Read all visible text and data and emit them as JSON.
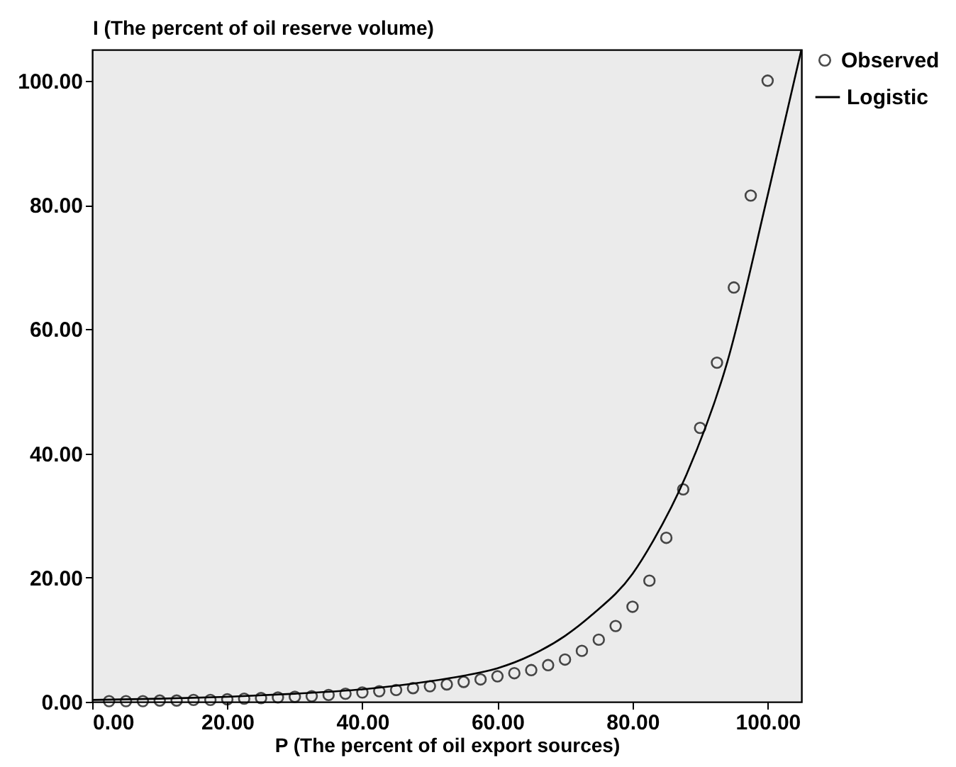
{
  "chart_data": {
    "type": "scatter",
    "xlabel": "P (The percent of oil export sources)",
    "ylabel": "I (The percent of oil reserve volume)",
    "xlim": [
      0,
      105
    ],
    "ylim": [
      0,
      105
    ],
    "xticks": [
      {
        "value": 0,
        "label": "0.00"
      },
      {
        "value": 20,
        "label": "20.00"
      },
      {
        "value": 40,
        "label": "40.00"
      },
      {
        "value": 60,
        "label": "60.00"
      },
      {
        "value": 80,
        "label": "80.00"
      },
      {
        "value": 100,
        "label": "100.00"
      }
    ],
    "yticks": [
      {
        "value": 0,
        "label": "0.00"
      },
      {
        "value": 20,
        "label": "20.00"
      },
      {
        "value": 40,
        "label": "40.00"
      },
      {
        "value": 60,
        "label": "60.00"
      },
      {
        "value": 80,
        "label": "80.00"
      },
      {
        "value": 100,
        "label": "100.00"
      }
    ],
    "grid": false,
    "legend": "top right",
    "series": [
      {
        "name": "Observed",
        "marker": "circle",
        "color": "#000000",
        "x": [
          2.5,
          5,
          7.5,
          10,
          12.5,
          15,
          17.5,
          20,
          22.5,
          25,
          27.5,
          30,
          32.5,
          35,
          37.5,
          40,
          42.5,
          45,
          47.5,
          50,
          52.5,
          55,
          57.5,
          60,
          62.5,
          65,
          67.5,
          70,
          72.5,
          75,
          77.5,
          80,
          82.5,
          85,
          87.5,
          90,
          92.5,
          95,
          97.5,
          100
        ],
        "values": [
          0.1,
          0.1,
          0.1,
          0.2,
          0.2,
          0.3,
          0.3,
          0.4,
          0.5,
          0.6,
          0.7,
          0.8,
          0.9,
          1.1,
          1.3,
          1.5,
          1.7,
          1.9,
          2.2,
          2.5,
          2.8,
          3.2,
          3.6,
          4.1,
          4.6,
          5.1,
          5.9,
          6.8,
          8.2,
          10.0,
          12.2,
          15.3,
          19.5,
          26.4,
          34.2,
          44.1,
          54.6,
          66.7,
          81.5,
          100.0
        ]
      },
      {
        "name": "Logistic",
        "type": "line",
        "line_style": "solid",
        "color": "#000000",
        "x": [
          0,
          10,
          20,
          30,
          40,
          50,
          55,
          60,
          65,
          70,
          74,
          80,
          83,
          88,
          94,
          100,
          105
        ],
        "values": [
          0.3,
          0.5,
          0.8,
          1.3,
          2.0,
          3.3,
          4.2,
          5.4,
          7.5,
          10.6,
          14.0,
          20.6,
          25.8,
          36.6,
          54.6,
          81.5,
          105
        ]
      }
    ]
  }
}
